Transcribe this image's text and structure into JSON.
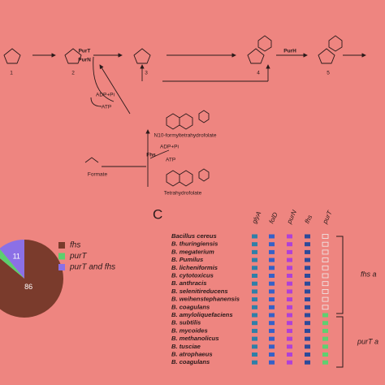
{
  "diagram": {
    "compounds": [
      "1",
      "2",
      "3",
      "4",
      "5"
    ],
    "enzymes": [
      "PurT",
      "PurN",
      "PurH",
      "Fhs"
    ],
    "cofactors": [
      "ADP+Pi",
      "ATP",
      "ADP+Pi",
      "ATP"
    ],
    "formate": "Formate",
    "formyl_thf": "N10-formyltetrahydrofolate",
    "thf": "Tetrahydrofolate"
  },
  "panel_label": "C",
  "chart_data": {
    "type": "pie",
    "categories": [
      "fhs",
      "purT",
      "purT and fhs"
    ],
    "values": [
      86,
      3,
      11
    ],
    "colors": [
      "#7a3b2c",
      "#5ccf6e",
      "#8b70e6"
    ],
    "value_labels": [
      "86",
      null,
      "11"
    ]
  },
  "table": {
    "columns": [
      "glyA",
      "folD",
      "purN",
      "fhs",
      "purT"
    ],
    "rows": [
      "Bacillus cereus",
      "B. thuringiensis",
      "B. megaterium",
      "B. Pumilus",
      "B. licheniformis",
      "B. cytotoxicus",
      "B. anthracis",
      "B. selenitireducens",
      "B. weihenstephanensis",
      "B. coagulans",
      "B. amyloliquefaciens",
      "B. subtilis",
      "B. mycoides",
      "B. methanolicus",
      "B. tusciae",
      "B. atrophaeus",
      "B. coagulans"
    ],
    "groups": [
      "fhs a",
      "purT a"
    ]
  }
}
